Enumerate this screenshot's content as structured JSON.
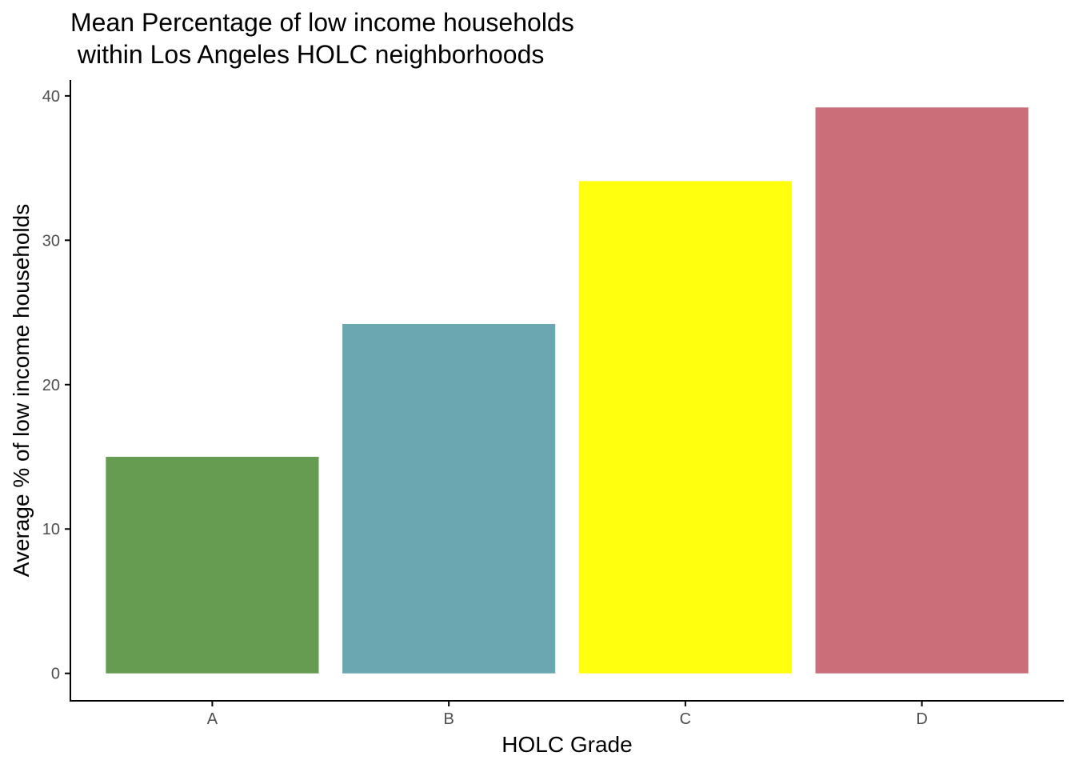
{
  "chart_data": {
    "type": "bar",
    "title": "Mean Percentage of low income households\n within Los Angeles HOLC neighborhoods",
    "title_lines": [
      "Mean Percentage of low income households",
      " within Los Angeles HOLC neighborhoods"
    ],
    "xlabel": "HOLC Grade",
    "ylabel": "Average % of low income households",
    "categories": [
      "A",
      "B",
      "C",
      "D"
    ],
    "values": [
      15.0,
      24.2,
      34.1,
      39.2
    ],
    "colors": [
      "#669B52",
      "#6AA7B0",
      "#FFFF0E",
      "#CC6E79"
    ],
    "ylim": [
      -1.9,
      41.1
    ],
    "yticks": [
      0,
      10,
      20,
      30,
      40
    ],
    "grid": false,
    "legend": "none"
  }
}
